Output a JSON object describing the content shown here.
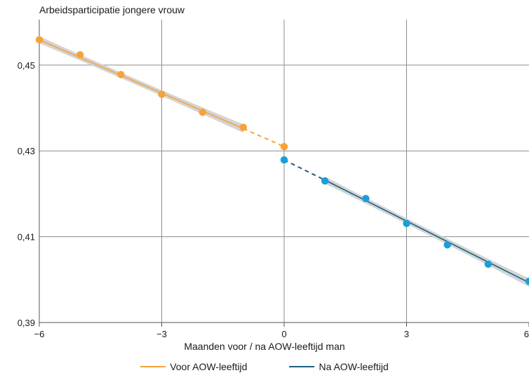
{
  "chart_data": {
    "type": "scatter",
    "title": "",
    "ylabel": "Arbeidsparticipatie jongere vrouw",
    "xlabel": "Maanden voor / na AOW-leeftijd man",
    "xlim": [
      -6,
      6
    ],
    "ylim": [
      0.39,
      0.4606
    ],
    "xticks": [
      -6,
      -3,
      0,
      3,
      6
    ],
    "xtick_labels": [
      "−6",
      "−3",
      "0",
      "3",
      "6"
    ],
    "yticks": [
      0.39,
      0.41,
      0.43,
      0.45
    ],
    "ytick_labels": [
      "0,39",
      "0,41",
      "0,43",
      "0,45"
    ],
    "grid": true,
    "legend_position": "bottom",
    "series": [
      {
        "name": "Voor AOW-leeftijd",
        "color": "#f5a33a",
        "x": [
          -6,
          -5,
          -4,
          -3,
          -2,
          -1,
          0
        ],
        "y": [
          0.4559,
          0.4524,
          0.4478,
          0.4432,
          0.439,
          0.4355,
          0.431
        ],
        "fit_start": [
          -6,
          0.4559
        ],
        "fit_end": [
          -1,
          0.4352
        ],
        "extrapolate_end": [
          0,
          0.431
        ]
      },
      {
        "name": "Na AOW-leeftijd",
        "color": "#1a9ed9",
        "line_color": "#1a5e86",
        "x": [
          0,
          1,
          2,
          3,
          4,
          5,
          6
        ],
        "y": [
          0.4279,
          0.423,
          0.4189,
          0.4131,
          0.4081,
          0.4036,
          0.3996
        ],
        "fit_start": [
          1,
          0.4232
        ],
        "fit_end": [
          6,
          0.3993
        ],
        "extrapolate_start": [
          0,
          0.4279
        ]
      }
    ]
  },
  "legend": {
    "items": [
      {
        "label": "Voor AOW-leeftijd",
        "color": "#f5a33a"
      },
      {
        "label": "Na AOW-leeftijd",
        "color": "#1a5e86"
      }
    ]
  }
}
